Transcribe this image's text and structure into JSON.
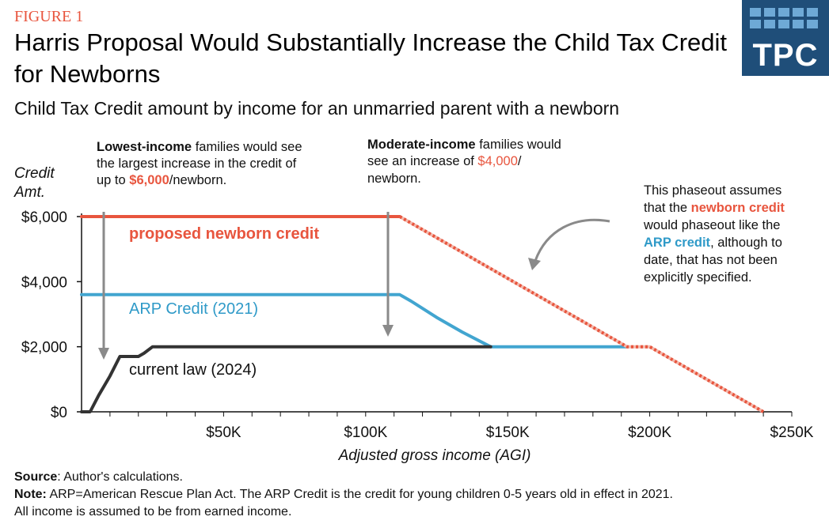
{
  "figure_label": "FIGURE 1",
  "title": "Harris Proposal Would Substantially Increase the Child Tax Credit for Newborns",
  "subtitle": "Child Tax Credit amount by income for an unmarried parent with a newborn",
  "logo": {
    "text": "TPC"
  },
  "colors": {
    "proposed": "#e8553e",
    "arp": "#42a5d0",
    "current": "#333333",
    "accent_red": "#e8553e",
    "accent_blue": "#2f9ac8"
  },
  "annotations": {
    "lowest_bold": "Lowest-income",
    "lowest_line1_rest": " families would see",
    "lowest_line2": "the largest increase in the credit of",
    "lowest_line3_pre": "up to ",
    "lowest_line3_amt": "$6,000",
    "lowest_line3_post": "/newborn.",
    "moderate_bold": "Moderate-income",
    "moderate_line1_rest": " families would",
    "moderate_line2_pre": "see an increase of ",
    "moderate_line2_amt": "$4,000",
    "moderate_line2_post": "/",
    "moderate_line3": "newborn.",
    "phaseout_line1": "This phaseout assumes",
    "phaseout_line2_pre": "that the ",
    "phaseout_line2_hl": "newborn credit",
    "phaseout_line3": "would phaseout like the",
    "phaseout_line4_hl": "ARP credit",
    "phaseout_line4_post": ", although to",
    "phaseout_line5": "date, that has not been",
    "phaseout_line6": "explicitly specified."
  },
  "chart_data": {
    "type": "line",
    "xlabel": "Adjusted gross income (AGI)",
    "ylabel_line1": "Credit",
    "ylabel_line2": "Amt.",
    "xlim": [
      0,
      250000
    ],
    "ylim": [
      0,
      6000
    ],
    "x_ticks": [
      {
        "value": 50000,
        "label": "$50K"
      },
      {
        "value": 100000,
        "label": "$100K"
      },
      {
        "value": 150000,
        "label": "$150K"
      },
      {
        "value": 200000,
        "label": "$200K"
      },
      {
        "value": 250000,
        "label": "$250K"
      }
    ],
    "y_ticks": [
      {
        "value": 0,
        "label": "$0"
      },
      {
        "value": 2000,
        "label": "$2,000"
      },
      {
        "value": 4000,
        "label": "$4,000"
      },
      {
        "value": 6000,
        "label": "$6,000"
      }
    ],
    "series": [
      {
        "name": "proposed newborn credit",
        "style": "solid",
        "points": [
          [
            0,
            6000
          ],
          [
            112000,
            6000
          ]
        ]
      },
      {
        "name": "proposed newborn credit (assumed phaseout)",
        "style": "dashed",
        "points": [
          [
            112000,
            6000
          ],
          [
            192000,
            2000
          ],
          [
            200000,
            2000
          ],
          [
            240000,
            0
          ]
        ]
      },
      {
        "name": "ARP Credit (2021)",
        "style": "solid",
        "points": [
          [
            0,
            3600
          ],
          [
            112000,
            3600
          ],
          [
            116000,
            3400
          ],
          [
            125000,
            2900
          ],
          [
            134000,
            2450
          ],
          [
            144000,
            2000
          ],
          [
            192000,
            2000
          ]
        ]
      },
      {
        "name": "current law (2024)",
        "style": "solid",
        "points": [
          [
            0,
            0
          ],
          [
            3000,
            0
          ],
          [
            6000,
            500
          ],
          [
            10000,
            1100
          ],
          [
            13500,
            1700
          ],
          [
            20000,
            1700
          ],
          [
            22000,
            1800
          ],
          [
            25000,
            2000
          ],
          [
            144000,
            2000
          ]
        ]
      }
    ],
    "series_labels": [
      {
        "series": 0,
        "text": "proposed newborn credit"
      },
      {
        "series": 2,
        "text": "ARP Credit (2021)"
      },
      {
        "series": 3,
        "text": "current law (2024)"
      }
    ]
  },
  "footer": {
    "source_label": "Source",
    "source_text": ": Author's calculations.",
    "note_label": "Note:",
    "note_text": " ARP=American Rescue Plan Act. The ARP Credit is the credit for young children 0-5 years old in effect in 2021.",
    "note_line2": "All income is assumed to be from earned income."
  }
}
